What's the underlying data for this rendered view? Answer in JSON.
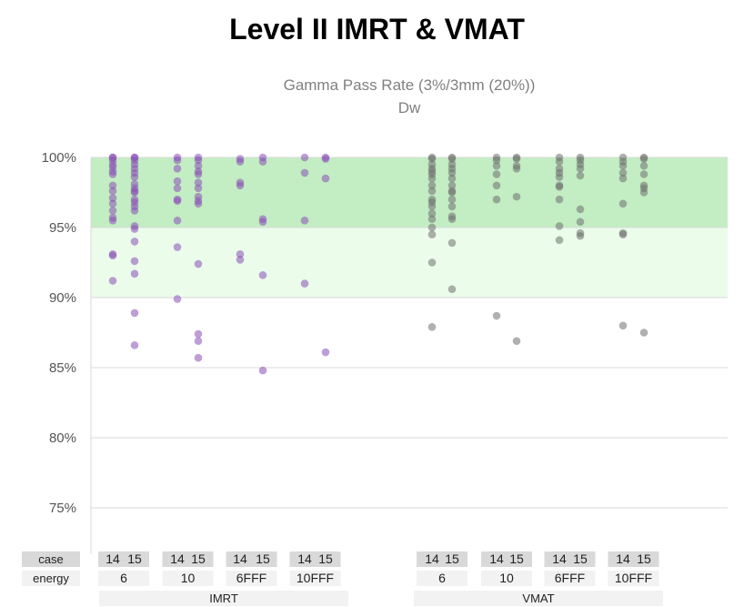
{
  "page_title": "Level II IMRT & VMAT",
  "chart_data": {
    "type": "scatter",
    "title": "Gamma Pass Rate (3%/3mm (20%))",
    "subtitle": "Dw",
    "ylim": [
      73,
      100
    ],
    "yticks": [
      100,
      95,
      90,
      85,
      80,
      75
    ],
    "ytick_labels": [
      "100%",
      "95%",
      "90%",
      "85%",
      "80%",
      "75%"
    ],
    "bands": [
      {
        "from": 95,
        "to": 100,
        "color": "#c3eec3"
      },
      {
        "from": 90,
        "to": 95,
        "color": "#ebfceb"
      }
    ],
    "row_labels": {
      "case": "case",
      "energy": "energy"
    },
    "groups": [
      {
        "name": "IMRT",
        "color": "#8b4fb8",
        "energies": [
          {
            "label": "6",
            "cases": [
              {
                "case": "14",
                "values": [
                  100,
                  100,
                  99.8,
                  99.5,
                  99.3,
                  99.0,
                  98.8,
                  98.0,
                  97.6,
                  97.1,
                  96.7,
                  96.2,
                  95.7,
                  95.5,
                  93.1,
                  93.0,
                  91.2
                ]
              },
              {
                "case": "15",
                "values": [
                  100,
                  100,
                  99.8,
                  99.5,
                  99.2,
                  98.9,
                  98.6,
                  98.1,
                  97.8,
                  97.6,
                  97.5,
                  97.0,
                  96.8,
                  96.5,
                  96.2,
                  95.1,
                  94.9,
                  94.0,
                  92.6,
                  91.7,
                  88.9,
                  86.6
                ]
              }
            ]
          },
          {
            "label": "10",
            "cases": [
              {
                "case": "14",
                "values": [
                  100,
                  99.8,
                  99.2,
                  98.3,
                  97.8,
                  97.0,
                  96.9,
                  95.5,
                  93.6,
                  89.9
                ]
              },
              {
                "case": "15",
                "values": [
                  100,
                  99.8,
                  99.4,
                  99.0,
                  98.8,
                  98.2,
                  97.8,
                  97.2,
                  96.9,
                  96.7,
                  92.4,
                  87.4,
                  86.9,
                  85.7
                ]
              }
            ]
          },
          {
            "label": "6FFF",
            "cases": [
              {
                "case": "14",
                "values": [
                  99.9,
                  99.7,
                  98.2,
                  98.0,
                  93.1,
                  92.7
                ]
              },
              {
                "case": "15",
                "values": [
                  100,
                  99.7,
                  95.6,
                  95.4,
                  91.6,
                  84.8
                ]
              }
            ]
          },
          {
            "label": "10FFF",
            "cases": [
              {
                "case": "14",
                "values": [
                  100,
                  98.9,
                  95.5,
                  91.0
                ]
              },
              {
                "case": "15",
                "values": [
                  100,
                  99.9,
                  98.5,
                  86.1
                ]
              }
            ]
          }
        ]
      },
      {
        "name": "VMAT",
        "color": "#707070",
        "energies": [
          {
            "label": "6",
            "cases": [
              {
                "case": "14",
                "values": [
                  100,
                  99.9,
                  99.5,
                  99.2,
                  99.0,
                  98.8,
                  98.5,
                  98.0,
                  97.6,
                  97.0,
                  96.8,
                  96.5,
                  96.0,
                  95.6,
                  95.0,
                  94.5,
                  92.5,
                  87.9
                ]
              },
              {
                "case": "15",
                "values": [
                  100,
                  99.9,
                  99.5,
                  99.2,
                  98.9,
                  98.5,
                  98.0,
                  97.6,
                  97.5,
                  97.0,
                  96.5,
                  95.8,
                  95.6,
                  93.9,
                  90.6
                ]
              }
            ]
          },
          {
            "label": "10",
            "cases": [
              {
                "case": "14",
                "values": [
                  100,
                  99.8,
                  99.4,
                  98.8,
                  98.0,
                  97.0,
                  88.7
                ]
              },
              {
                "case": "15",
                "values": [
                  100,
                  99.9,
                  99.4,
                  99.2,
                  97.2,
                  86.9
                ]
              }
            ]
          },
          {
            "label": "6FFF",
            "cases": [
              {
                "case": "14",
                "values": [
                  100,
                  99.7,
                  99.2,
                  98.9,
                  98.6,
                  98.0,
                  97.9,
                  97.0,
                  95.1,
                  94.1
                ]
              },
              {
                "case": "15",
                "values": [
                  100,
                  99.8,
                  99.5,
                  99.2,
                  98.7,
                  96.3,
                  95.4,
                  94.6,
                  94.4
                ]
              }
            ]
          },
          {
            "label": "10FFF",
            "cases": [
              {
                "case": "14",
                "values": [
                  100,
                  99.7,
                  99.4,
                  98.9,
                  98.5,
                  96.7,
                  94.6,
                  94.5,
                  88.0
                ]
              },
              {
                "case": "15",
                "values": [
                  100,
                  99.9,
                  99.4,
                  98.8,
                  98.0,
                  97.8,
                  97.5,
                  87.5
                ]
              }
            ]
          }
        ]
      }
    ]
  }
}
